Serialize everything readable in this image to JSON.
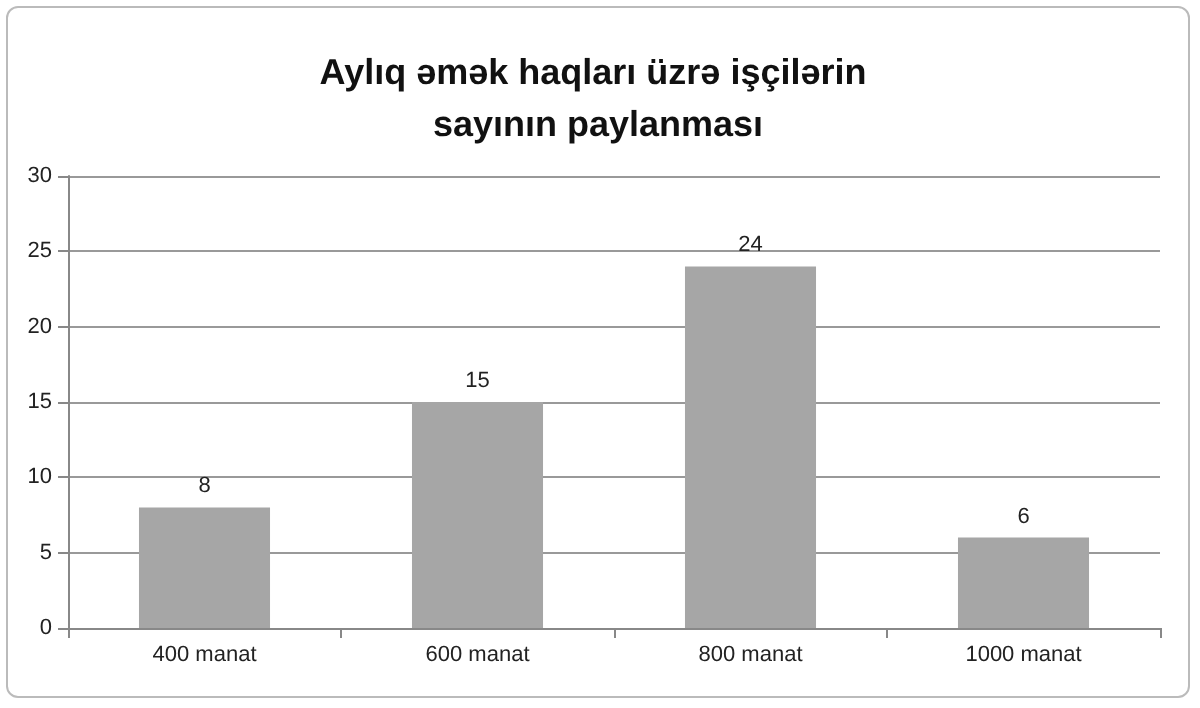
{
  "chart_data": {
    "type": "bar",
    "title": "Aylıq əmək haqları üzrə işçilərin sayının paylanması",
    "categories": [
      "400 manat",
      "600 manat",
      "800 manat",
      "1000 manat"
    ],
    "values": [
      8,
      15,
      24,
      6
    ],
    "color": "#a6a6a6",
    "ylim": [
      0,
      30
    ],
    "yticks": [
      0,
      5,
      10,
      15,
      20,
      25,
      30
    ],
    "grid": "y",
    "data_labels": true
  }
}
